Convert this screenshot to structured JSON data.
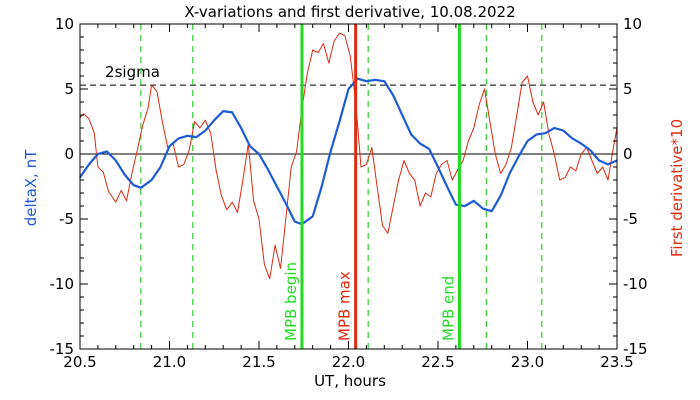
{
  "chart_data": {
    "type": "line",
    "title": "X-variations and first derivative, 10.08.2022",
    "xlabel": "UT, hours",
    "ylabel_left": "deltaX, nT",
    "ylabel_right": "First derivative*10",
    "xlim": [
      20.5,
      23.5
    ],
    "ylim": [
      -15,
      10
    ],
    "x_ticks": [
      "20.5",
      "21.0",
      "21.5",
      "22.0",
      "22.5",
      "23.0",
      "23.5"
    ],
    "y_ticks": [
      "10",
      "5",
      "0",
      "-5",
      "-10",
      "-15"
    ],
    "x_tick_values": [
      20.5,
      21.0,
      21.5,
      22.0,
      22.5,
      23.0,
      23.5
    ],
    "y_tick_values": [
      10,
      5,
      0,
      -5,
      -10,
      -15
    ],
    "sigma_label": "2sigma",
    "sigma_level": 5.3,
    "colors": {
      "deltaX": "#1e5bd6",
      "derivative": "#dd2a10",
      "mpb": "#22dd22",
      "mpb_max": "#dd2a10",
      "guides": "#33cc33"
    },
    "green_dashed_x": [
      20.84,
      21.13,
      22.11,
      22.77,
      23.08
    ],
    "markers": [
      {
        "label": "MPB begin",
        "x": 21.74
      },
      {
        "label": "MPB max",
        "x": 22.04
      },
      {
        "label": "MPB end",
        "x": 22.62
      }
    ],
    "series": [
      {
        "key": "deltaX",
        "x": [
          20.5,
          20.55,
          20.6,
          20.65,
          20.7,
          20.75,
          20.8,
          20.84,
          20.9,
          20.95,
          21.0,
          21.05,
          21.1,
          21.15,
          21.2,
          21.25,
          21.3,
          21.35,
          21.4,
          21.45,
          21.5,
          21.55,
          21.6,
          21.65,
          21.7,
          21.74,
          21.8,
          21.85,
          21.9,
          21.95,
          22.0,
          22.05,
          22.1,
          22.15,
          22.2,
          22.25,
          22.3,
          22.35,
          22.4,
          22.45,
          22.5,
          22.55,
          22.6,
          22.65,
          22.7,
          22.75,
          22.8,
          22.85,
          22.9,
          22.95,
          23.0,
          23.05,
          23.1,
          23.15,
          23.2,
          23.25,
          23.3,
          23.35,
          23.4,
          23.45,
          23.5
        ],
        "values": [
          -1.8,
          -0.8,
          0.0,
          0.2,
          -0.5,
          -1.6,
          -2.4,
          -2.6,
          -2.0,
          -1.0,
          0.6,
          1.2,
          1.4,
          1.3,
          1.8,
          2.6,
          3.3,
          3.2,
          2.0,
          0.6,
          0.0,
          -1.2,
          -2.5,
          -3.8,
          -5.2,
          -5.4,
          -4.8,
          -2.5,
          0.2,
          2.5,
          5.0,
          5.8,
          5.6,
          5.7,
          5.6,
          4.5,
          3.0,
          1.5,
          0.8,
          0.4,
          -1.0,
          -2.5,
          -3.9,
          -4.0,
          -3.6,
          -4.2,
          -4.4,
          -3.2,
          -1.5,
          -0.2,
          1.0,
          1.5,
          1.6,
          2.0,
          1.8,
          1.2,
          0.8,
          0.3,
          -0.5,
          -0.8,
          -0.5
        ]
      },
      {
        "key": "derivative",
        "x": [
          20.5,
          20.52,
          20.55,
          20.58,
          20.6,
          20.63,
          20.66,
          20.7,
          20.73,
          20.76,
          20.79,
          20.82,
          20.85,
          20.88,
          20.9,
          20.93,
          20.96,
          20.99,
          21.02,
          21.05,
          21.08,
          21.11,
          21.14,
          21.17,
          21.2,
          21.23,
          21.26,
          21.29,
          21.32,
          21.35,
          21.38,
          21.41,
          21.44,
          21.47,
          21.5,
          21.53,
          21.56,
          21.59,
          21.62,
          21.65,
          21.68,
          21.71,
          21.74,
          21.77,
          21.8,
          21.83,
          21.86,
          21.89,
          21.92,
          21.95,
          21.98,
          22.01,
          22.04,
          22.07,
          22.1,
          22.13,
          22.16,
          22.19,
          22.22,
          22.25,
          22.28,
          22.31,
          22.34,
          22.37,
          22.4,
          22.43,
          22.46,
          22.49,
          22.52,
          22.55,
          22.58,
          22.61,
          22.64,
          22.67,
          22.7,
          22.73,
          22.76,
          22.79,
          22.82,
          22.85,
          22.88,
          22.91,
          22.94,
          22.97,
          23.0,
          23.03,
          23.06,
          23.09,
          23.12,
          23.15,
          23.18,
          23.21,
          23.24,
          23.27,
          23.3,
          23.33,
          23.36,
          23.39,
          23.42,
          23.45,
          23.48,
          23.5
        ],
        "values": [
          2.8,
          3.1,
          2.7,
          1.6,
          -1.0,
          -1.4,
          -2.9,
          -3.7,
          -2.8,
          -3.6,
          -1.5,
          0.3,
          2.2,
          3.5,
          5.3,
          4.8,
          2.5,
          0.5,
          0.8,
          -1.0,
          -0.8,
          0.3,
          2.5,
          2.0,
          2.6,
          1.6,
          -1.2,
          -3.2,
          -4.3,
          -3.7,
          -4.5,
          -2.0,
          0.8,
          -3.6,
          -5.0,
          -8.5,
          -9.6,
          -7.0,
          -8.8,
          -5.0,
          -1.0,
          0.2,
          3.5,
          6.2,
          8.0,
          7.8,
          8.5,
          7.0,
          8.7,
          9.3,
          9.1,
          7.5,
          4.0,
          -1.0,
          -0.8,
          0.5,
          -2.5,
          -5.5,
          -6.1,
          -4.0,
          -2.0,
          -0.5,
          -1.5,
          -2.0,
          -4.0,
          -3.0,
          -3.3,
          -1.5,
          -0.8,
          -0.5,
          -2.0,
          -1.2,
          -0.5,
          1.0,
          2.0,
          3.8,
          5.0,
          2.5,
          0.0,
          -1.5,
          -0.8,
          0.5,
          3.0,
          5.5,
          6.0,
          4.0,
          3.0,
          4.0,
          1.5,
          0.0,
          -2.0,
          -1.8,
          -1.0,
          -1.3,
          0.0,
          0.5,
          -0.5,
          -1.5,
          -1.0,
          -2.0,
          0.5,
          2.0
        ]
      }
    ]
  }
}
